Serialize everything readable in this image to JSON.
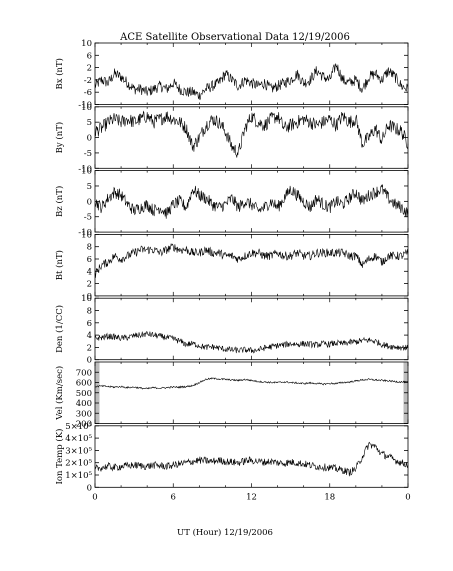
{
  "chart_data": {
    "type": "line",
    "title": "ACE Satellite Observational Data   12/19/2006",
    "xlabel": "UT (Hour)  12/19/2006",
    "x_ticks": [
      "0",
      "6",
      "12",
      "18",
      "0"
    ],
    "x_range": [
      0,
      24
    ],
    "line_color": "#000000",
    "gap_bar_color": "#bdbdbd",
    "panels": [
      {
        "ylabel": "Bx (nT)",
        "ylim": [
          -10,
          10
        ],
        "y_ticks": [
          "-10",
          "-6",
          "-2",
          "2",
          "6",
          "10"
        ],
        "y_tick_values": [
          -10,
          -6,
          -2,
          2,
          6,
          10
        ],
        "scale": "linear",
        "x": [
          0,
          0.5,
          1,
          1.5,
          2,
          2.5,
          3,
          3.5,
          4,
          4.5,
          5,
          5.5,
          6,
          6.5,
          7,
          7.5,
          8,
          8.5,
          9,
          9.5,
          10,
          10.5,
          11,
          11.5,
          12,
          12.5,
          13,
          13.5,
          14,
          14.5,
          15,
          15.5,
          16,
          16.5,
          17,
          17.5,
          18,
          18.5,
          19,
          19.5,
          20,
          20.5,
          21,
          21.5,
          22,
          22.5,
          23,
          23.5,
          24
        ],
        "values": [
          -4,
          -2,
          -3,
          0,
          -1,
          -3,
          -5,
          -5,
          -6,
          -5,
          -4,
          -5,
          -3,
          -5,
          -6,
          -6,
          -7,
          -5,
          -4,
          -3,
          0,
          -2,
          -4,
          -2,
          -3,
          -4,
          -3,
          -5,
          -4,
          -3,
          -2,
          0,
          -3,
          -2,
          1,
          -1,
          -2,
          3,
          -2,
          -3,
          -2,
          -5,
          -1,
          0,
          -2,
          1,
          -1,
          -4,
          -5
        ],
        "noise": 1.8
      },
      {
        "ylabel": "By (nT)",
        "ylim": [
          -10,
          10
        ],
        "y_ticks": [
          "-10",
          "-5",
          "0",
          "5",
          "10"
        ],
        "y_tick_values": [
          -10,
          -5,
          0,
          5,
          10
        ],
        "scale": "linear",
        "x": [
          0,
          0.5,
          1,
          1.5,
          2,
          2.5,
          3,
          3.5,
          4,
          4.5,
          5,
          5.5,
          6,
          6.5,
          7,
          7.5,
          8,
          8.5,
          9,
          9.5,
          10,
          10.5,
          11,
          11.5,
          12,
          12.5,
          13,
          13.5,
          14,
          14.5,
          15,
          15.5,
          16,
          16.5,
          17,
          17.5,
          18,
          18.5,
          19,
          19.5,
          20,
          20.5,
          21,
          21.5,
          22,
          22.5,
          23,
          23.5,
          24
        ],
        "values": [
          2,
          3,
          5,
          6,
          5,
          6,
          5,
          6,
          7,
          5,
          6,
          7,
          6,
          5,
          3,
          -3,
          0,
          4,
          6,
          5,
          2,
          -3,
          -5,
          3,
          7,
          5,
          4,
          6,
          7,
          3,
          4,
          5,
          6,
          5,
          4,
          5,
          6,
          4,
          7,
          5,
          6,
          -2,
          0,
          3,
          -1,
          4,
          3,
          2,
          -2
        ],
        "noise": 2.2
      },
      {
        "ylabel": "Bz (nT)",
        "ylim": [
          -10,
          10
        ],
        "y_ticks": [
          "-10",
          "-5",
          "0",
          "5",
          "10"
        ],
        "y_tick_values": [
          -10,
          -5,
          0,
          5,
          10
        ],
        "scale": "linear",
        "x": [
          0,
          0.5,
          1,
          1.5,
          2,
          2.5,
          3,
          3.5,
          4,
          4.5,
          5,
          5.5,
          6,
          6.5,
          7,
          7.5,
          8,
          8.5,
          9,
          9.5,
          10,
          10.5,
          11,
          11.5,
          12,
          12.5,
          13,
          13.5,
          14,
          14.5,
          15,
          15.5,
          16,
          16.5,
          17,
          17.5,
          18,
          18.5,
          19,
          19.5,
          20,
          20.5,
          21,
          21.5,
          22,
          22.5,
          23,
          23.5,
          24
        ],
        "values": [
          0,
          -2,
          1,
          3,
          2,
          -1,
          -3,
          -2,
          -1,
          -3,
          -2,
          -4,
          -1,
          0,
          -2,
          4,
          2,
          1,
          -1,
          -2,
          -1,
          1,
          -2,
          0,
          -1,
          -3,
          -2,
          0,
          -2,
          1,
          4,
          2,
          0,
          -2,
          1,
          -1,
          -2,
          0,
          -1,
          1,
          3,
          0,
          2,
          3,
          4,
          1,
          -1,
          -2,
          -4
        ],
        "noise": 2.0
      },
      {
        "ylabel": "Bt (nT)",
        "ylim": [
          0,
          10
        ],
        "y_ticks": [
          "0",
          "2",
          "4",
          "6",
          "8",
          "10"
        ],
        "y_tick_values": [
          0,
          2,
          4,
          6,
          8,
          10
        ],
        "scale": "linear",
        "x": [
          0,
          0.5,
          1,
          1.5,
          2,
          2.5,
          3,
          3.5,
          4,
          4.5,
          5,
          5.5,
          6,
          6.5,
          7,
          7.5,
          8,
          8.5,
          9,
          9.5,
          10,
          10.5,
          11,
          11.5,
          12,
          12.5,
          13,
          13.5,
          14,
          14.5,
          15,
          15.5,
          16,
          16.5,
          17,
          17.5,
          18,
          18.5,
          19,
          19.5,
          20,
          20.5,
          21,
          21.5,
          22,
          22.5,
          23,
          23.5,
          24
        ],
        "values": [
          3.5,
          5,
          5.5,
          6.5,
          6,
          6.5,
          7,
          7.5,
          7.5,
          7.5,
          7,
          7.5,
          8,
          7.5,
          7.5,
          7,
          7,
          7.5,
          7,
          7,
          6.5,
          6.5,
          6,
          6.5,
          7,
          7,
          6.5,
          6.5,
          7,
          6.5,
          6.5,
          7,
          6.5,
          6.5,
          7,
          7,
          7,
          7,
          7,
          6.5,
          6.5,
          5,
          6,
          6.5,
          5.5,
          6.5,
          6.5,
          6.5,
          7
        ],
        "noise": 0.7
      },
      {
        "ylabel": "Den (1/CC)",
        "ylim": [
          0,
          10
        ],
        "y_ticks": [
          "0",
          "2",
          "4",
          "6",
          "8",
          "10"
        ],
        "y_tick_values": [
          0,
          2,
          4,
          6,
          8,
          10
        ],
        "scale": "linear",
        "x": [
          0,
          0.5,
          1,
          1.5,
          2,
          2.5,
          3,
          3.5,
          4,
          4.5,
          5,
          5.5,
          6,
          6.5,
          7,
          7.5,
          8,
          8.5,
          9,
          9.5,
          10,
          10.5,
          11,
          11.5,
          12,
          12.5,
          13,
          13.5,
          14,
          14.5,
          15,
          15.5,
          16,
          16.5,
          17,
          17.5,
          18,
          18.5,
          19,
          19.5,
          20,
          20.5,
          21,
          21.5,
          22,
          22.5,
          23,
          23.5,
          24
        ],
        "values": [
          3.5,
          3.6,
          3.8,
          3.7,
          3.5,
          3.6,
          3.9,
          4.0,
          4.2,
          4.0,
          3.8,
          3.6,
          3.4,
          3.0,
          2.5,
          2.6,
          2.3,
          2.0,
          2.1,
          1.9,
          1.7,
          1.6,
          1.5,
          1.6,
          1.5,
          1.6,
          1.9,
          2.1,
          2.3,
          2.4,
          2.6,
          2.5,
          2.6,
          2.5,
          2.4,
          2.6,
          2.5,
          2.7,
          2.6,
          2.8,
          2.9,
          3.1,
          3.2,
          3.0,
          2.5,
          2.2,
          2.1,
          2.0,
          1.9
        ],
        "noise": 0.5
      },
      {
        "ylabel": "Vel (Km/sec)",
        "ylim": [
          200,
          800
        ],
        "y_ticks": [
          "200",
          "300",
          "400",
          "500",
          "600",
          "700"
        ],
        "y_tick_values": [
          200,
          300,
          400,
          500,
          600,
          700
        ],
        "scale": "linear",
        "x": [
          0,
          0.5,
          1,
          1.5,
          2,
          2.5,
          3,
          3.5,
          4,
          4.5,
          5,
          5.5,
          6,
          6.5,
          7,
          7.5,
          8,
          8.5,
          9,
          9.5,
          10,
          10.5,
          11,
          11.5,
          12,
          12.5,
          13,
          13.5,
          14,
          14.5,
          15,
          15.5,
          16,
          16.5,
          17,
          17.5,
          18,
          18.5,
          19,
          19.5,
          20,
          20.5,
          21,
          21.5,
          22,
          22.5,
          23,
          23.5,
          24
        ],
        "values": [
          560,
          565,
          560,
          555,
          560,
          550,
          555,
          545,
          540,
          550,
          545,
          550,
          555,
          555,
          560,
          570,
          600,
          630,
          640,
          635,
          630,
          625,
          620,
          630,
          620,
          610,
          605,
          600,
          600,
          605,
          600,
          595,
          590,
          595,
          590,
          585,
          590,
          590,
          600,
          605,
          615,
          625,
          630,
          625,
          620,
          615,
          610,
          605,
          605
        ],
        "noise": 8
      },
      {
        "ylabel": "Ion Temp (K)",
        "ylim": [
          0,
          500000
        ],
        "y_ticks": [
          "0",
          "1×10⁵",
          "2×10⁵",
          "3×10⁵",
          "4×10⁵",
          "5×10⁵"
        ],
        "y_tick_values": [
          0,
          100000,
          200000,
          300000,
          400000,
          500000
        ],
        "scale": "linear",
        "x": [
          0,
          0.5,
          1,
          1.5,
          2,
          2.5,
          3,
          3.5,
          4,
          4.5,
          5,
          5.5,
          6,
          6.5,
          7,
          7.5,
          8,
          8.5,
          9,
          9.5,
          10,
          10.5,
          11,
          11.5,
          12,
          12.5,
          13,
          13.5,
          14,
          14.5,
          15,
          15.5,
          16,
          16.5,
          17,
          17.5,
          18,
          18.5,
          19,
          19.5,
          20,
          20.5,
          21,
          21.5,
          22,
          22.5,
          23,
          23.5,
          24
        ],
        "values": [
          150000,
          160000,
          170000,
          160000,
          170000,
          175000,
          180000,
          175000,
          170000,
          180000,
          175000,
          170000,
          180000,
          190000,
          200000,
          210000,
          220000,
          215000,
          210000,
          220000,
          210000,
          205000,
          200000,
          215000,
          220000,
          210000,
          205000,
          210000,
          200000,
          195000,
          205000,
          200000,
          190000,
          180000,
          170000,
          165000,
          160000,
          150000,
          140000,
          120000,
          150000,
          250000,
          350000,
          330000,
          270000,
          250000,
          220000,
          200000,
          185000
        ],
        "noise": 30000
      }
    ]
  }
}
